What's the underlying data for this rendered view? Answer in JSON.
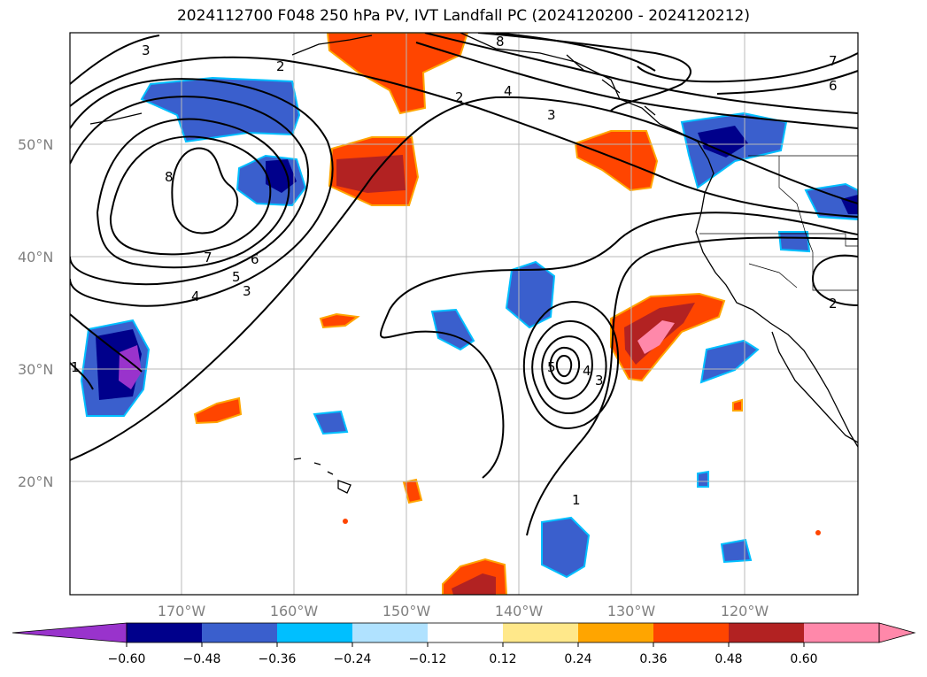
{
  "title": "2024112700 F048 250 hPa PV, IVT Landfall PC (2024120200 - 2024120212)",
  "lat_labels": [
    "50°N",
    "40°N",
    "30°N",
    "20°N"
  ],
  "lon_labels": [
    "170°W",
    "160°W",
    "150°W",
    "140°W",
    "130°W",
    "120°W"
  ],
  "colorbar": {
    "ticks": [
      "−0.60",
      "−0.48",
      "−0.36",
      "−0.24",
      "−0.12",
      "0.12",
      "0.24",
      "0.36",
      "0.48",
      "0.60"
    ],
    "colors": [
      "#9933cc",
      "#00008b",
      "#3a5fcd",
      "#00bfff",
      "#b0e2ff",
      "#ffffff",
      "#ffe88a",
      "#ffa500",
      "#ff4500",
      "#b22222",
      "#ff88aa",
      "#ff88aa"
    ]
  },
  "contour_labels": [
    "3",
    "2",
    "8",
    "7",
    "6",
    "2",
    "4",
    "3",
    "8",
    "7",
    "6",
    "5",
    "4",
    "3",
    "5",
    "4",
    "3",
    "1",
    "1",
    "2"
  ],
  "colors": {
    "negative_strong": "#00008b",
    "negative": "#3a5fcd",
    "negative_weak": "#00bfff",
    "positive_weak": "#ffa500",
    "positive": "#ff4500",
    "positive_strong": "#b22222",
    "positive_max": "#ff88aa"
  }
}
